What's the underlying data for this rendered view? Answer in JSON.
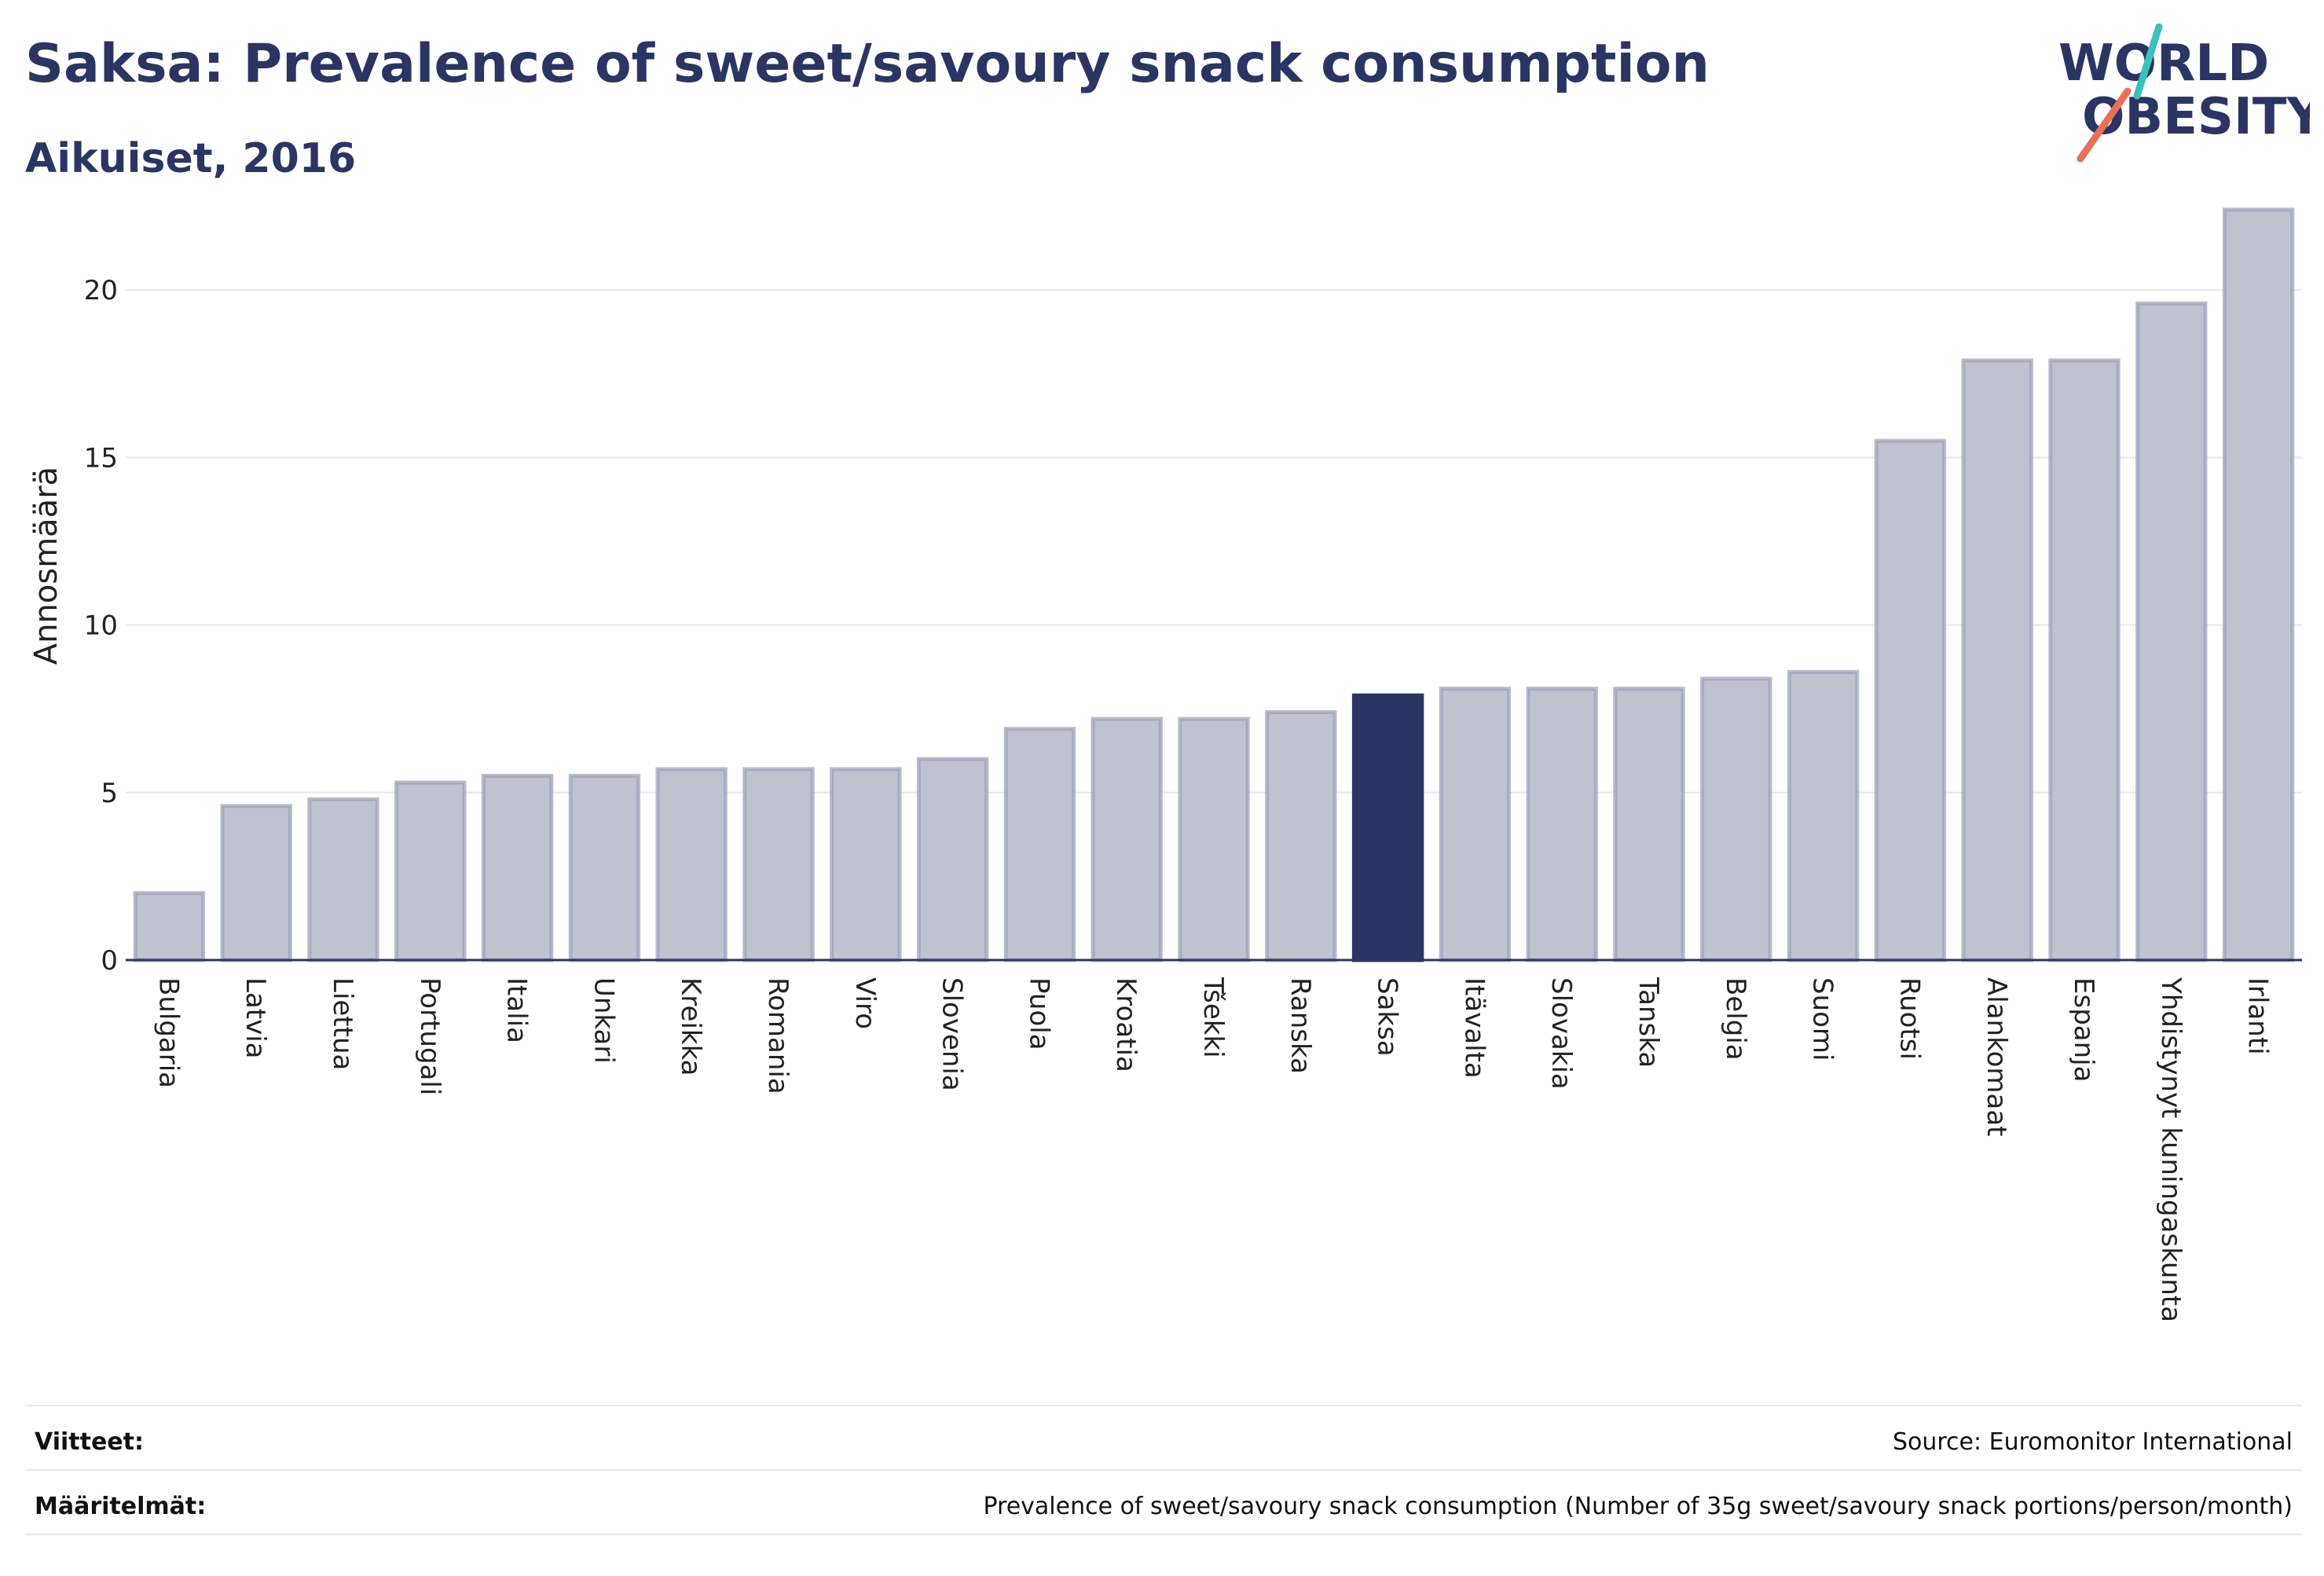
{
  "header": {
    "title": "Saksa: Prevalence of sweet/savoury snack consumption",
    "subtitle": "Aikuiset, 2016"
  },
  "logo": {
    "line1": "WORLD",
    "line2": "OBESITY",
    "icon": "world-obesity-logo"
  },
  "colors": {
    "highlight": "#2b3563",
    "bar": "#bfc3d0",
    "bar_border": "#9aa0b8",
    "grid": "#e6e8ee",
    "title": "#2b3563"
  },
  "chart_data": {
    "type": "bar",
    "categories": [
      "Bulgaria",
      "Latvia",
      "Liettua",
      "Portugali",
      "Italia",
      "Unkari",
      "Kreikka",
      "Romania",
      "Viro",
      "Slovenia",
      "Puola",
      "Kroatia",
      "Tšekki",
      "Ranska",
      "Saksa",
      "Itävalta",
      "Slovakia",
      "Tanska",
      "Belgia",
      "Suomi",
      "Ruotsi",
      "Alankomaat",
      "Espanja",
      "Yhdistynyt kuningaskunta",
      "Irlanti"
    ],
    "values": [
      2.0,
      4.6,
      4.8,
      5.3,
      5.5,
      5.5,
      5.7,
      5.7,
      5.7,
      6.0,
      6.9,
      7.2,
      7.2,
      7.4,
      7.9,
      8.1,
      8.1,
      8.1,
      8.4,
      8.6,
      15.5,
      17.9,
      17.9,
      19.6,
      22.4
    ],
    "highlight": "Saksa",
    "ylabel": "Annosmäärä",
    "xlabel": "",
    "yticks": [
      0,
      5,
      10,
      15,
      20
    ],
    "ylim": [
      0,
      23.5
    ],
    "grid": true
  },
  "footer": {
    "references_label": "Viitteet:",
    "references_value": "Source: Euromonitor International",
    "definitions_label": "Määritelmät:",
    "definitions_value": "Prevalence of sweet/savoury snack consumption (Number of 35g sweet/savoury snack portions/person/month)"
  }
}
